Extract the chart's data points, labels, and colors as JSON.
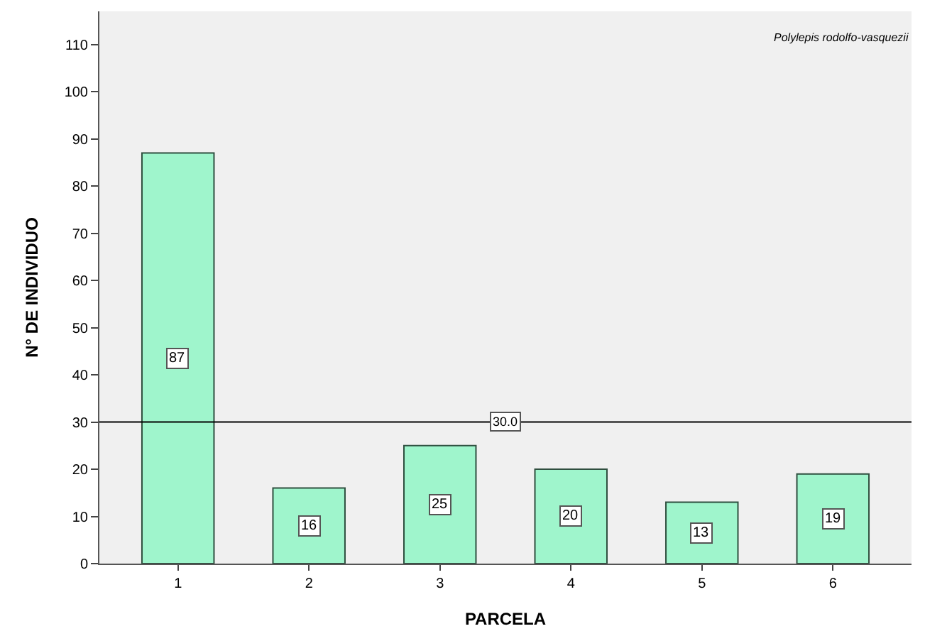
{
  "chart_data": {
    "type": "bar",
    "xlabel": "PARCELA",
    "ylabel": "N° DE INDIVIDUO",
    "annotations": [
      "Polylepis rodolfo-vasquezii"
    ],
    "categories": [
      "1",
      "2",
      "3",
      "4",
      "5",
      "6"
    ],
    "values": [
      87,
      16,
      25,
      20,
      13,
      19
    ],
    "color": "#9ff5cc",
    "ylim": [
      0,
      117
    ],
    "yticks": [
      0,
      10,
      20,
      30,
      40,
      50,
      60,
      70,
      80,
      90,
      100,
      110
    ],
    "ref_lines": [
      {
        "axis": "y",
        "value": 30,
        "label": "30.0",
        "color": "#000000"
      }
    ],
    "data_labels": true,
    "grid": false,
    "legend": false
  }
}
